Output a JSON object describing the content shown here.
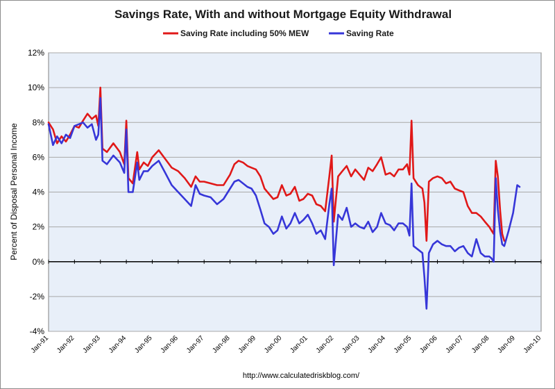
{
  "chart_data": {
    "type": "line",
    "title": "Savings Rate, With and without Mortgage Equity Withdrawal",
    "xlabel": "",
    "ylabel": "Percent of Disposal Personal Income",
    "source": "http://www.calculatedriskblog.com/",
    "xlim": [
      1991.0,
      2010.0
    ],
    "ylim": [
      -4,
      12
    ],
    "y_ticks": [
      -4,
      -2,
      0,
      2,
      4,
      6,
      8,
      10,
      12
    ],
    "y_tick_labels": [
      "-4%",
      "-2%",
      "0%",
      "2%",
      "4%",
      "6%",
      "8%",
      "10%",
      "12%"
    ],
    "x_ticks": [
      1991,
      1992,
      1993,
      1994,
      1995,
      1996,
      1997,
      1998,
      1999,
      2000,
      2001,
      2002,
      2003,
      2004,
      2005,
      2006,
      2007,
      2008,
      2009,
      2010
    ],
    "x_tick_labels": [
      "Jan-91",
      "Jan-92",
      "Jan-93",
      "Jan-94",
      "Jan-95",
      "Jan-96",
      "Jan-97",
      "Jan-98",
      "Jan-99",
      "Jan-00",
      "Jan-01",
      "Jan-02",
      "Jan-03",
      "Jan-04",
      "Jan-05",
      "Jan-06",
      "Jan-07",
      "Jan-08",
      "Jan-09",
      "Jan-10"
    ],
    "grid": true,
    "legend_position": "top",
    "plot_background": "#e8eff9",
    "series": [
      {
        "name": "Saving Rate including 50% MEW",
        "color": "#e01818",
        "points": [
          [
            1991.0,
            8.0
          ],
          [
            1991.17,
            7.6
          ],
          [
            1991.33,
            6.8
          ],
          [
            1991.5,
            7.2
          ],
          [
            1991.67,
            6.9
          ],
          [
            1991.83,
            7.3
          ],
          [
            1992.0,
            7.8
          ],
          [
            1992.17,
            7.7
          ],
          [
            1992.33,
            8.1
          ],
          [
            1992.5,
            8.5
          ],
          [
            1992.67,
            8.2
          ],
          [
            1992.83,
            8.4
          ],
          [
            1992.92,
            7.8
          ],
          [
            1993.0,
            10.0
          ],
          [
            1993.08,
            6.5
          ],
          [
            1993.25,
            6.3
          ],
          [
            1993.5,
            6.8
          ],
          [
            1993.75,
            6.3
          ],
          [
            1993.92,
            5.6
          ],
          [
            1994.0,
            8.1
          ],
          [
            1994.08,
            4.8
          ],
          [
            1994.25,
            4.5
          ],
          [
            1994.42,
            6.3
          ],
          [
            1994.5,
            5.3
          ],
          [
            1994.67,
            5.7
          ],
          [
            1994.83,
            5.5
          ],
          [
            1995.0,
            6.0
          ],
          [
            1995.25,
            6.4
          ],
          [
            1995.5,
            5.9
          ],
          [
            1995.75,
            5.4
          ],
          [
            1996.0,
            5.2
          ],
          [
            1996.25,
            4.8
          ],
          [
            1996.5,
            4.3
          ],
          [
            1996.67,
            4.9
          ],
          [
            1996.83,
            4.6
          ],
          [
            1997.0,
            4.6
          ],
          [
            1997.25,
            4.5
          ],
          [
            1997.5,
            4.4
          ],
          [
            1997.75,
            4.4
          ],
          [
            1998.0,
            5.0
          ],
          [
            1998.17,
            5.6
          ],
          [
            1998.33,
            5.8
          ],
          [
            1998.5,
            5.7
          ],
          [
            1998.67,
            5.5
          ],
          [
            1998.83,
            5.4
          ],
          [
            1999.0,
            5.3
          ],
          [
            1999.17,
            4.9
          ],
          [
            1999.33,
            4.2
          ],
          [
            1999.5,
            3.9
          ],
          [
            1999.67,
            3.6
          ],
          [
            1999.83,
            3.7
          ],
          [
            2000.0,
            4.4
          ],
          [
            2000.17,
            3.8
          ],
          [
            2000.33,
            3.9
          ],
          [
            2000.5,
            4.3
          ],
          [
            2000.67,
            3.5
          ],
          [
            2000.83,
            3.6
          ],
          [
            2001.0,
            3.9
          ],
          [
            2001.17,
            3.8
          ],
          [
            2001.33,
            3.3
          ],
          [
            2001.5,
            3.2
          ],
          [
            2001.67,
            2.9
          ],
          [
            2001.83,
            4.9
          ],
          [
            2001.92,
            6.1
          ],
          [
            2002.0,
            2.3
          ],
          [
            2002.17,
            4.9
          ],
          [
            2002.33,
            5.2
          ],
          [
            2002.5,
            5.5
          ],
          [
            2002.67,
            4.9
          ],
          [
            2002.83,
            5.3
          ],
          [
            2003.0,
            5.0
          ],
          [
            2003.17,
            4.7
          ],
          [
            2003.33,
            5.4
          ],
          [
            2003.5,
            5.2
          ],
          [
            2003.67,
            5.6
          ],
          [
            2003.83,
            6.0
          ],
          [
            2004.0,
            5.0
          ],
          [
            2004.17,
            5.1
          ],
          [
            2004.33,
            4.9
          ],
          [
            2004.5,
            5.3
          ],
          [
            2004.67,
            5.3
          ],
          [
            2004.83,
            5.6
          ],
          [
            2004.92,
            5.0
          ],
          [
            2005.0,
            8.1
          ],
          [
            2005.08,
            4.8
          ],
          [
            2005.25,
            4.4
          ],
          [
            2005.42,
            4.2
          ],
          [
            2005.5,
            3.4
          ],
          [
            2005.58,
            1.2
          ],
          [
            2005.67,
            4.6
          ],
          [
            2005.83,
            4.8
          ],
          [
            2006.0,
            4.9
          ],
          [
            2006.17,
            4.8
          ],
          [
            2006.33,
            4.5
          ],
          [
            2006.5,
            4.6
          ],
          [
            2006.67,
            4.2
          ],
          [
            2006.83,
            4.1
          ],
          [
            2007.0,
            4.0
          ],
          [
            2007.17,
            3.2
          ],
          [
            2007.33,
            2.8
          ],
          [
            2007.5,
            2.8
          ],
          [
            2007.67,
            2.6
          ],
          [
            2007.83,
            2.3
          ],
          [
            2008.0,
            2.0
          ],
          [
            2008.08,
            1.8
          ],
          [
            2008.17,
            1.6
          ],
          [
            2008.25,
            5.8
          ],
          [
            2008.33,
            4.9
          ],
          [
            2008.42,
            2.9
          ],
          [
            2008.5,
            1.6
          ],
          [
            2008.58,
            1.2
          ]
        ]
      },
      {
        "name": "Saving Rate",
        "color": "#3636d8",
        "points": [
          [
            1991.0,
            7.9
          ],
          [
            1991.17,
            6.7
          ],
          [
            1991.33,
            7.2
          ],
          [
            1991.5,
            6.8
          ],
          [
            1991.67,
            7.3
          ],
          [
            1991.83,
            7.1
          ],
          [
            1992.0,
            7.8
          ],
          [
            1992.17,
            7.9
          ],
          [
            1992.33,
            8.0
          ],
          [
            1992.5,
            7.7
          ],
          [
            1992.67,
            7.9
          ],
          [
            1992.83,
            7.0
          ],
          [
            1992.92,
            7.3
          ],
          [
            1993.0,
            9.4
          ],
          [
            1993.08,
            5.8
          ],
          [
            1993.25,
            5.6
          ],
          [
            1993.5,
            6.1
          ],
          [
            1993.75,
            5.7
          ],
          [
            1993.92,
            5.1
          ],
          [
            1994.0,
            7.6
          ],
          [
            1994.08,
            4.0
          ],
          [
            1994.25,
            4.0
          ],
          [
            1994.42,
            5.7
          ],
          [
            1994.5,
            4.7
          ],
          [
            1994.67,
            5.2
          ],
          [
            1994.83,
            5.2
          ],
          [
            1995.0,
            5.5
          ],
          [
            1995.25,
            5.8
          ],
          [
            1995.5,
            5.1
          ],
          [
            1995.75,
            4.4
          ],
          [
            1996.0,
            4.0
          ],
          [
            1996.25,
            3.6
          ],
          [
            1996.5,
            3.2
          ],
          [
            1996.67,
            4.4
          ],
          [
            1996.83,
            3.9
          ],
          [
            1997.0,
            3.8
          ],
          [
            1997.25,
            3.7
          ],
          [
            1997.5,
            3.3
          ],
          [
            1997.75,
            3.6
          ],
          [
            1998.0,
            4.2
          ],
          [
            1998.17,
            4.6
          ],
          [
            1998.33,
            4.7
          ],
          [
            1998.5,
            4.5
          ],
          [
            1998.67,
            4.3
          ],
          [
            1998.83,
            4.2
          ],
          [
            1999.0,
            3.8
          ],
          [
            1999.17,
            3.0
          ],
          [
            1999.33,
            2.2
          ],
          [
            1999.5,
            2.0
          ],
          [
            1999.67,
            1.6
          ],
          [
            1999.83,
            1.8
          ],
          [
            2000.0,
            2.6
          ],
          [
            2000.17,
            1.9
          ],
          [
            2000.33,
            2.2
          ],
          [
            2000.5,
            2.8
          ],
          [
            2000.67,
            2.2
          ],
          [
            2000.83,
            2.4
          ],
          [
            2001.0,
            2.7
          ],
          [
            2001.17,
            2.2
          ],
          [
            2001.33,
            1.6
          ],
          [
            2001.5,
            1.8
          ],
          [
            2001.67,
            1.3
          ],
          [
            2001.83,
            3.3
          ],
          [
            2001.92,
            4.2
          ],
          [
            2002.0,
            -0.2
          ],
          [
            2002.17,
            2.7
          ],
          [
            2002.33,
            2.4
          ],
          [
            2002.5,
            3.1
          ],
          [
            2002.67,
            2.0
          ],
          [
            2002.83,
            2.2
          ],
          [
            2003.0,
            2.0
          ],
          [
            2003.17,
            1.9
          ],
          [
            2003.33,
            2.3
          ],
          [
            2003.5,
            1.7
          ],
          [
            2003.67,
            2.0
          ],
          [
            2003.83,
            2.8
          ],
          [
            2004.0,
            2.2
          ],
          [
            2004.17,
            2.1
          ],
          [
            2004.33,
            1.8
          ],
          [
            2004.5,
            2.2
          ],
          [
            2004.67,
            2.2
          ],
          [
            2004.83,
            2.0
          ],
          [
            2004.92,
            1.5
          ],
          [
            2005.0,
            4.5
          ],
          [
            2005.08,
            0.9
          ],
          [
            2005.25,
            0.7
          ],
          [
            2005.42,
            0.5
          ],
          [
            2005.5,
            -0.9
          ],
          [
            2005.58,
            -2.7
          ],
          [
            2005.67,
            0.5
          ],
          [
            2005.83,
            1.0
          ],
          [
            2006.0,
            1.2
          ],
          [
            2006.17,
            1.0
          ],
          [
            2006.33,
            0.9
          ],
          [
            2006.5,
            0.9
          ],
          [
            2006.67,
            0.6
          ],
          [
            2006.83,
            0.8
          ],
          [
            2007.0,
            0.9
          ],
          [
            2007.17,
            0.5
          ],
          [
            2007.33,
            0.3
          ],
          [
            2007.5,
            1.3
          ],
          [
            2007.67,
            0.5
          ],
          [
            2007.83,
            0.3
          ],
          [
            2008.0,
            0.3
          ],
          [
            2008.08,
            0.2
          ],
          [
            2008.17,
            0.0
          ],
          [
            2008.25,
            4.8
          ],
          [
            2008.33,
            3.0
          ],
          [
            2008.42,
            1.7
          ],
          [
            2008.5,
            1.0
          ],
          [
            2008.58,
            0.9
          ],
          [
            2008.75,
            1.8
          ],
          [
            2008.92,
            2.8
          ],
          [
            2009.0,
            3.6
          ],
          [
            2009.08,
            4.4
          ],
          [
            2009.17,
            4.3
          ]
        ]
      }
    ]
  }
}
